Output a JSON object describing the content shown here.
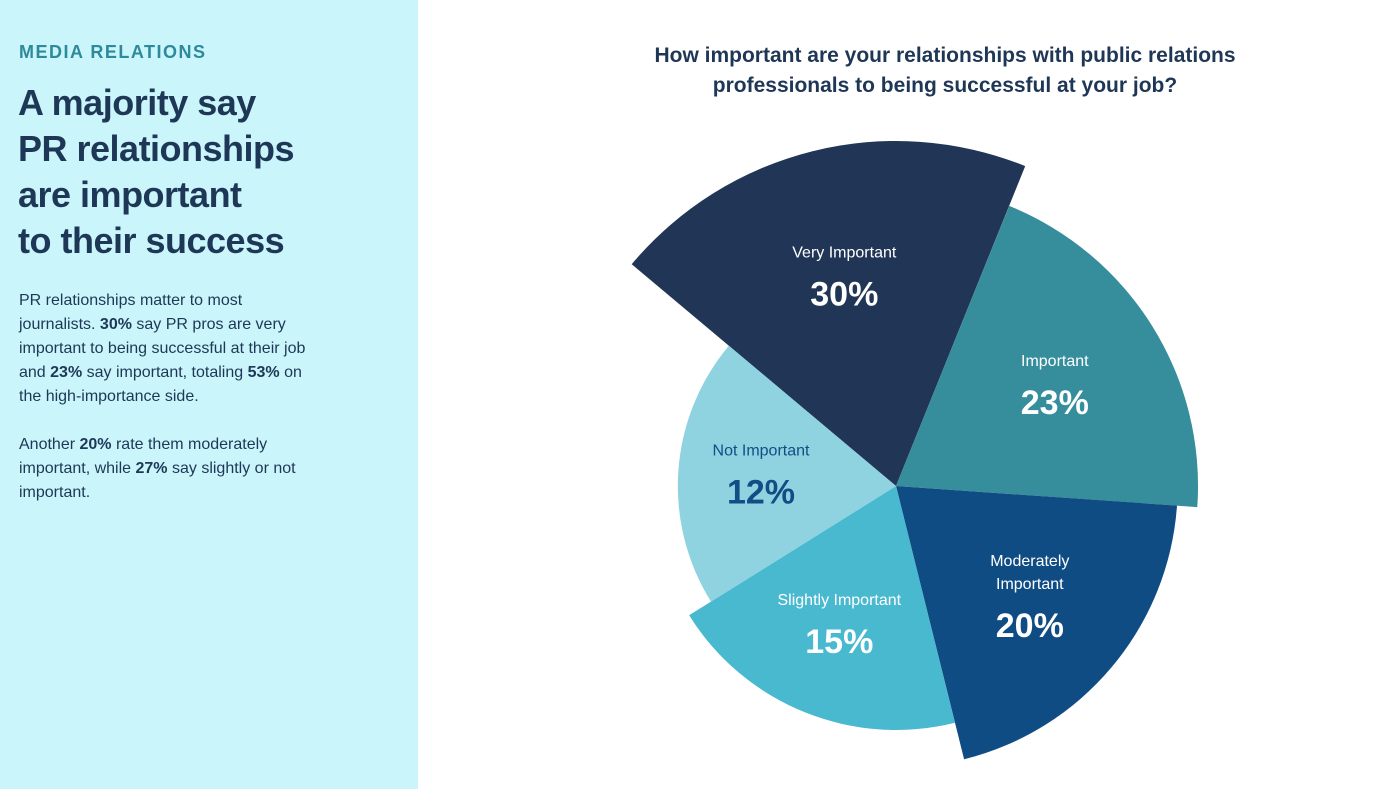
{
  "sidebar": {
    "eyebrow": "MEDIA RELATIONS",
    "headline_lines": [
      "A majority say",
      "PR relationships",
      "are important",
      "to their success"
    ],
    "paragraph1": [
      {
        "text": "PR relationships matter to most journalists. ",
        "bold": false
      },
      {
        "text": "30%",
        "bold": true
      },
      {
        "text": " say PR pros are very important to being successful at their job and ",
        "bold": false
      },
      {
        "text": "23%",
        "bold": true
      },
      {
        "text": " say important, totaling ",
        "bold": false
      },
      {
        "text": "53%",
        "bold": true
      },
      {
        "text": " on the high-importance side.",
        "bold": false
      }
    ],
    "paragraph2": [
      {
        "text": "Another ",
        "bold": false
      },
      {
        "text": "20%",
        "bold": true
      },
      {
        "text": " rate them moderately important, while ",
        "bold": false
      },
      {
        "text": "27%",
        "bold": true
      },
      {
        "text": " say slightly or not important.",
        "bold": false
      }
    ]
  },
  "chart_data": {
    "type": "pie",
    "variant": "polar-area",
    "title_lines": [
      "How important are your relationships with public relations",
      "professionals to being successful at your job?"
    ],
    "segments": [
      {
        "label_lines": [
          "Very Important"
        ],
        "value": 30,
        "display": "30%",
        "color": "#213657",
        "text_color": "#ffffff"
      },
      {
        "label_lines": [
          "Important"
        ],
        "value": 23,
        "display": "23%",
        "color": "#368e9d",
        "text_color": "#ffffff"
      },
      {
        "label_lines": [
          "Moderately",
          "Important"
        ],
        "value": 20,
        "display": "20%",
        "color": "#104c84",
        "text_color": "#ffffff"
      },
      {
        "label_lines": [
          "Slightly Important"
        ],
        "value": 15,
        "display": "15%",
        "color": "#49b9d0",
        "text_color": "#ffffff"
      },
      {
        "label_lines": [
          "Not Important"
        ],
        "value": 12,
        "display": "12%",
        "color": "#8fd3e0",
        "text_color": "#124d85"
      }
    ]
  }
}
